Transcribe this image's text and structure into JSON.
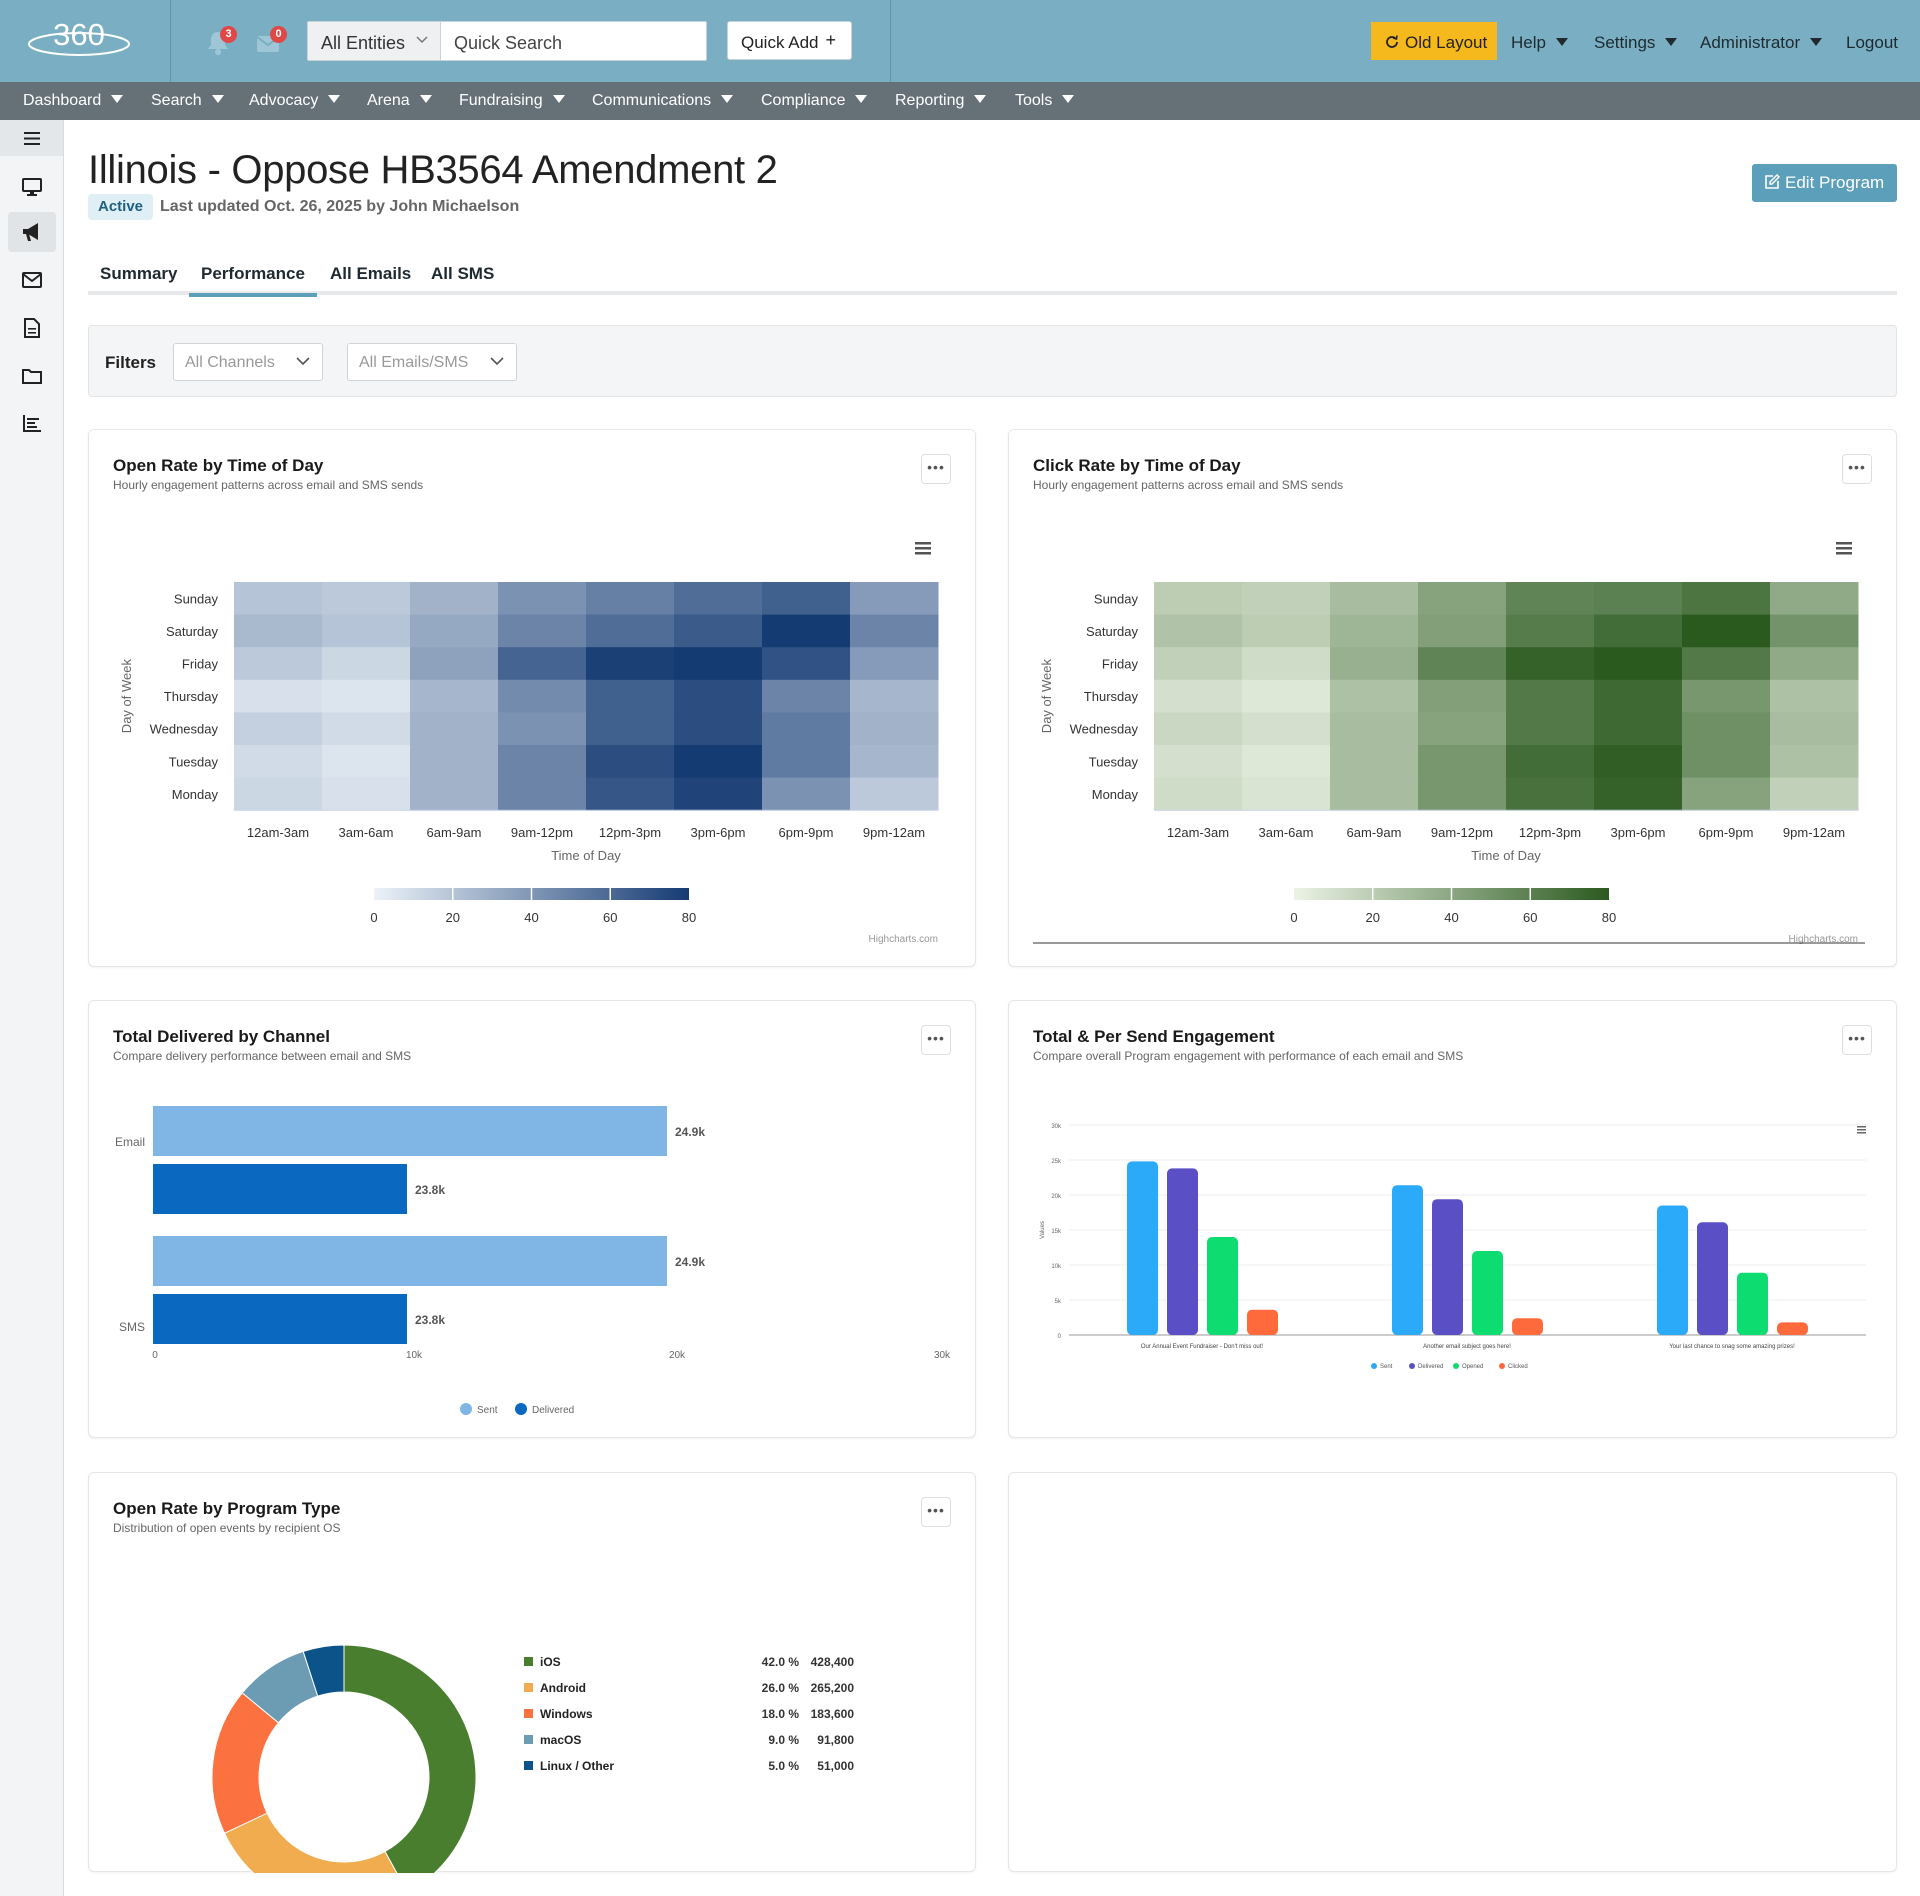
{
  "header": {
    "logo_text": "360",
    "notif_count": "3",
    "mail_count": "0",
    "entity_select": "All Entities",
    "quick_search": "Quick Search",
    "quick_add": "Quick Add",
    "quick_add_icon": "+",
    "old_layout": "Old Layout",
    "help": "Help",
    "settings": "Settings",
    "administrator": "Administrator",
    "logout": "Logout"
  },
  "menu": [
    "Dashboard",
    "Search",
    "Advocacy",
    "Arena",
    "Fundraising",
    "Communications",
    "Compliance",
    "Reporting",
    "Tools"
  ],
  "sidebar_icons": [
    "hamburger-icon",
    "monitor-icon",
    "megaphone-icon",
    "envelope-icon",
    "document-icon",
    "folder-icon",
    "bar-chart-icon"
  ],
  "page": {
    "title": "Illinois - Oppose HB3564 Amendment 2",
    "status": "Active",
    "updated": "Last updated Oct. 26, 2025 by John Michaelson",
    "edit_button": "Edit Program"
  },
  "tabs": [
    "Summary",
    "Performance",
    "All Emails",
    "All SMS"
  ],
  "active_tab": "Performance",
  "filters": {
    "label": "Filters",
    "channels": "All Channels",
    "emails_sms": "All Emails/SMS"
  },
  "colors": {
    "topbar": "#7aafc3",
    "menubar": "#667077",
    "accent": "#5b9fbb",
    "old_layout": "#f5b91d",
    "open_heatmap_max": "#153b73",
    "click_heatmap_max": "#2b5a1f"
  },
  "cards": {
    "open_rate": {
      "title": "Open Rate by Time of Day",
      "subtitle": "Hourly engagement patterns across email and SMS sends"
    },
    "click_rate": {
      "title": "Click Rate by Time of Day",
      "subtitle": "Hourly engagement patterns across email and SMS sends"
    },
    "delivered": {
      "title": "Total Delivered by Channel",
      "subtitle": "Compare delivery performance between email and SMS"
    },
    "engagement": {
      "title": "Total & Per Send Engagement",
      "subtitle": "Compare overall Program engagement with performance of each email and SMS"
    },
    "program_type": {
      "title": "Open Rate by Program Type",
      "subtitle": "Distribution of open events by recipient OS"
    }
  },
  "credit": "Highcharts.com",
  "chart_data": [
    {
      "type": "heatmap",
      "id": "open_rate",
      "xlabel": "Time of Day",
      "ylabel": "Day of Week",
      "x": [
        "12am-3am",
        "3am-6am",
        "6am-9am",
        "9am-12pm",
        "12pm-3pm",
        "3pm-6pm",
        "6pm-9pm",
        "9pm-12am"
      ],
      "y": [
        "Sunday",
        "Saturday",
        "Friday",
        "Thursday",
        "Wednesday",
        "Tuesday",
        "Monday"
      ],
      "values": [
        [
          20,
          18,
          28,
          42,
          50,
          58,
          64,
          38
        ],
        [
          25,
          20,
          32,
          48,
          58,
          66,
          80,
          48
        ],
        [
          18,
          12,
          35,
          62,
          78,
          88,
          70,
          38
        ],
        [
          8,
          6,
          26,
          45,
          64,
          72,
          48,
          26
        ],
        [
          15,
          10,
          28,
          42,
          64,
          72,
          52,
          28
        ],
        [
          10,
          6,
          28,
          48,
          72,
          80,
          52,
          26
        ],
        [
          12,
          8,
          28,
          48,
          68,
          76,
          42,
          18
        ]
      ],
      "color_axis": {
        "min": 0,
        "max": 80,
        "ticks": [
          0,
          20,
          40,
          60,
          80
        ]
      }
    },
    {
      "type": "heatmap",
      "id": "click_rate",
      "xlabel": "Time of Day",
      "ylabel": "Day of Week",
      "x": [
        "12am-3am",
        "3am-6am",
        "6am-9am",
        "9am-12pm",
        "12pm-3pm",
        "3pm-6pm",
        "6pm-9pm",
        "9pm-12am"
      ],
      "y": [
        "Sunday",
        "Saturday",
        "Friday",
        "Thursday",
        "Wednesday",
        "Tuesday",
        "Monday"
      ],
      "values": [
        [
          20,
          18,
          28,
          42,
          58,
          60,
          66,
          38
        ],
        [
          25,
          20,
          32,
          44,
          62,
          70,
          80,
          50
        ],
        [
          18,
          12,
          35,
          58,
          76,
          84,
          64,
          38
        ],
        [
          10,
          6,
          26,
          44,
          64,
          72,
          48,
          26
        ],
        [
          14,
          10,
          28,
          42,
          64,
          72,
          52,
          28
        ],
        [
          10,
          6,
          28,
          48,
          70,
          78,
          52,
          26
        ],
        [
          12,
          8,
          28,
          48,
          68,
          76,
          42,
          18
        ]
      ],
      "color_axis": {
        "min": 0,
        "max": 80,
        "ticks": [
          0,
          20,
          40,
          60,
          80
        ]
      }
    },
    {
      "type": "bar",
      "id": "delivered",
      "orientation": "horizontal",
      "categories": [
        "Email",
        "SMS"
      ],
      "series": [
        {
          "name": "Sent",
          "values": [
            24900,
            24900
          ],
          "labels": [
            "24.9k",
            "24.9k"
          ],
          "color": "#7fb6e6"
        },
        {
          "name": "Delivered",
          "values": [
            23800,
            23800
          ],
          "labels": [
            "23.8k",
            "23.8k"
          ],
          "color": "#0a68c0"
        }
      ],
      "xlim": [
        0,
        30000
      ],
      "ticks": [
        "0",
        "10k",
        "20k",
        "30k"
      ],
      "legend": "bottom"
    },
    {
      "type": "bar",
      "id": "engagement",
      "categories": [
        "Our Annual Event Fundraiser - Don't miss out!",
        "Another email subject goes here!",
        "Your last chance to snag some amazing prizes!"
      ],
      "series": [
        {
          "name": "Sent",
          "values": [
            24800,
            21400,
            18500
          ],
          "color": "#2aaaf8"
        },
        {
          "name": "Delivered",
          "values": [
            23800,
            19400,
            16100
          ],
          "color": "#5b4fc6"
        },
        {
          "name": "Opened",
          "values": [
            14000,
            12000,
            8900
          ],
          "color": "#0ddd70"
        },
        {
          "name": "Clicked",
          "values": [
            3600,
            2400,
            1800
          ],
          "color": "#ff6a3d"
        }
      ],
      "ylabel": "Values",
      "ylim": [
        0,
        30000
      ],
      "ticks": [
        "0",
        "5k",
        "10k",
        "15k",
        "20k",
        "25k",
        "30k"
      ],
      "legend": "bottom"
    },
    {
      "type": "pie",
      "id": "program_type",
      "donut": true,
      "slices": [
        {
          "name": "iOS",
          "percent": "42.0 %",
          "value": 42.0,
          "count": "428,400",
          "color": "#4a7e2f"
        },
        {
          "name": "Android",
          "percent": "26.0 %",
          "value": 26.0,
          "count": "265,200",
          "color": "#f0ac4e"
        },
        {
          "name": "Windows",
          "percent": "18.0 %",
          "value": 18.0,
          "count": "183,600",
          "color": "#fb7240"
        },
        {
          "name": "macOS",
          "percent": "9.0 %",
          "value": 9.0,
          "count": "91,800",
          "color": "#6c9cb4"
        },
        {
          "name": "Linux / Other",
          "percent": "5.0 %",
          "value": 5.0,
          "count": "51,000",
          "color": "#0b5389"
        }
      ],
      "legend": "right"
    }
  ]
}
